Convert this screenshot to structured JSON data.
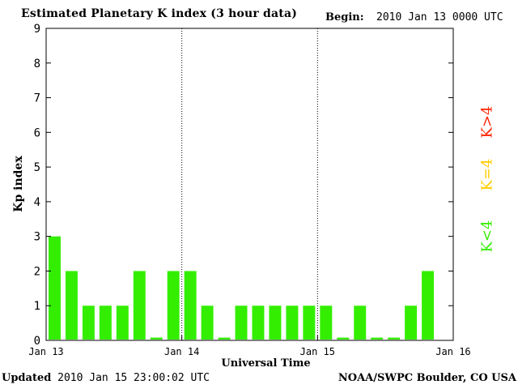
{
  "header": {
    "title": "Estimated Planetary K index (3 hour data)",
    "begin_label": "Begin:",
    "begin_value": "2010 Jan 13 0000 UTC"
  },
  "footer": {
    "updated_label": "Updated",
    "updated_value": "2010 Jan 15 23:00:02 UTC",
    "credit": "NOAA/SWPC Boulder, CO USA"
  },
  "legend": {
    "low": {
      "label": "K<4",
      "color": "#33ee00"
    },
    "mid": {
      "label": "K=4",
      "color": "#ffcc00"
    },
    "high": {
      "label": "K>4",
      "color": "#ff2200"
    }
  },
  "chart_data": {
    "type": "bar",
    "title": "Estimated Planetary K index (3 hour data)",
    "xlabel": "Universal Time",
    "ylabel": "Kp index",
    "ylim": [
      0,
      9
    ],
    "yticks": [
      "0",
      "1",
      "2",
      "3",
      "4",
      "5",
      "6",
      "7",
      "8",
      "9"
    ],
    "xticks": [
      "Jan 13",
      "Jan 14",
      "Jan 15",
      "Jan 16"
    ],
    "interval_hours": 3,
    "values": [
      3,
      2,
      1,
      1,
      1,
      2,
      0,
      2,
      2,
      1,
      0,
      1,
      1,
      1,
      1,
      1,
      1,
      0,
      1,
      0,
      0,
      1,
      2
    ],
    "bar_color": "#33ee00",
    "grid": false,
    "day_separators": "dotted"
  }
}
